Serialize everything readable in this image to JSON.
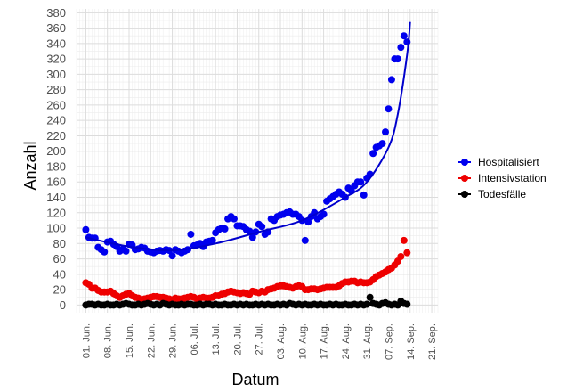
{
  "chart_data": {
    "type": "scatter",
    "xlabel": "Datum",
    "ylabel": "Anzahl",
    "xlim": [
      "2020-05-29",
      "2020-09-23"
    ],
    "ylim": [
      -10,
      385
    ],
    "x_tick_labels": [
      "01. Jun.",
      "08. Jun.",
      "15. Jun.",
      "22. Jun.",
      "29. Jun.",
      "06. Jul.",
      "13. Jul.",
      "20. Jul.",
      "27. Jul.",
      "03. Aug.",
      "10. Aug.",
      "17. Aug.",
      "24. Aug.",
      "31. Aug.",
      "07. Sep.",
      "14. Sep.",
      "21. Sep."
    ],
    "x_tick_dates": [
      "2020-06-01",
      "2020-06-08",
      "2020-06-15",
      "2020-06-22",
      "2020-06-29",
      "2020-07-06",
      "2020-07-13",
      "2020-07-20",
      "2020-07-27",
      "2020-08-03",
      "2020-08-10",
      "2020-08-17",
      "2020-08-24",
      "2020-08-31",
      "2020-09-07",
      "2020-09-14",
      "2020-09-21"
    ],
    "y_ticks": [
      0,
      20,
      40,
      60,
      80,
      100,
      120,
      140,
      160,
      180,
      200,
      220,
      240,
      260,
      280,
      300,
      320,
      340,
      360,
      380
    ],
    "legend_position": "right",
    "grid": true,
    "start_date": "2020-06-01",
    "series": [
      {
        "name": "Hospitalisiert",
        "color": "#0000ee",
        "values": [
          98,
          88,
          87,
          87,
          75,
          72,
          69,
          82,
          83,
          79,
          76,
          70,
          73,
          70,
          79,
          78,
          72,
          73,
          75,
          74,
          70,
          69,
          68,
          70,
          71,
          70,
          72,
          71,
          64,
          72,
          70,
          68,
          70,
          72,
          92,
          77,
          78,
          80,
          76,
          82,
          83,
          84,
          94,
          98,
          100,
          99,
          112,
          115,
          112,
          103,
          103,
          102,
          98,
          96,
          88,
          95,
          105,
          102,
          92,
          95,
          112,
          110,
          115,
          117,
          118,
          120,
          121,
          118,
          118,
          115,
          110,
          84,
          108,
          115,
          120,
          112,
          115,
          118,
          135,
          138,
          141,
          144,
          147,
          144,
          140,
          152,
          148,
          155,
          160,
          160,
          143,
          165,
          170,
          197,
          205,
          207,
          210,
          225,
          255,
          293,
          320,
          320,
          335,
          350,
          342
        ]
      },
      {
        "name": "Intensivstation",
        "color": "#ee0000",
        "values": [
          29,
          27,
          22,
          22,
          19,
          17,
          17,
          17,
          18,
          15,
          12,
          10,
          12,
          14,
          15,
          12,
          10,
          9,
          7,
          8,
          9,
          10,
          11,
          11,
          10,
          10,
          9,
          8,
          7,
          9,
          8,
          8,
          9,
          10,
          11,
          10,
          8,
          9,
          10,
          9,
          9,
          10,
          12,
          12,
          14,
          15,
          17,
          18,
          17,
          16,
          15,
          16,
          15,
          14,
          18,
          17,
          16,
          18,
          17,
          20,
          21,
          22,
          24,
          25,
          25,
          24,
          23,
          22,
          24,
          25,
          24,
          20,
          20,
          21,
          21,
          20,
          21,
          22,
          23,
          23,
          23,
          23,
          25,
          28,
          30,
          30,
          31,
          31,
          29,
          30,
          29,
          29,
          30,
          33,
          37,
          39,
          41,
          43,
          46,
          48,
          52,
          57,
          63,
          84,
          68
        ]
      },
      {
        "name": "Todesfälle",
        "color": "#000000",
        "values": [
          0,
          1,
          1,
          0,
          1,
          0,
          0,
          1,
          0,
          0,
          1,
          0,
          1,
          2,
          1,
          0,
          0,
          1,
          0,
          1,
          2,
          1,
          0,
          1,
          0,
          2,
          1,
          0,
          1,
          0,
          0,
          1,
          0,
          1,
          1,
          0,
          0,
          1,
          0,
          1,
          1,
          0,
          1,
          0,
          0,
          1,
          0,
          0,
          1,
          0,
          1,
          0,
          1,
          0,
          0,
          1,
          0,
          1,
          0,
          1,
          0,
          0,
          1,
          0,
          1,
          0,
          2,
          1,
          0,
          1,
          0,
          1,
          0,
          0,
          1,
          0,
          1,
          0,
          0,
          1,
          0,
          1,
          0,
          0,
          1,
          0,
          0,
          1,
          0,
          1,
          0,
          1,
          10,
          2,
          1,
          0,
          2,
          3,
          1,
          0,
          1,
          0,
          5,
          2,
          1
        ]
      }
    ],
    "trend_line": {
      "series": "Hospitalisiert",
      "color": "#0000cc",
      "points": [
        [
          0,
          88
        ],
        [
          14,
          76
        ],
        [
          28,
          71
        ],
        [
          42,
          80
        ],
        [
          56,
          95
        ],
        [
          70,
          110
        ],
        [
          84,
          140
        ],
        [
          91,
          160
        ],
        [
          98,
          205
        ],
        [
          101,
          248
        ],
        [
          104,
          325
        ],
        [
          105,
          368
        ]
      ]
    }
  }
}
